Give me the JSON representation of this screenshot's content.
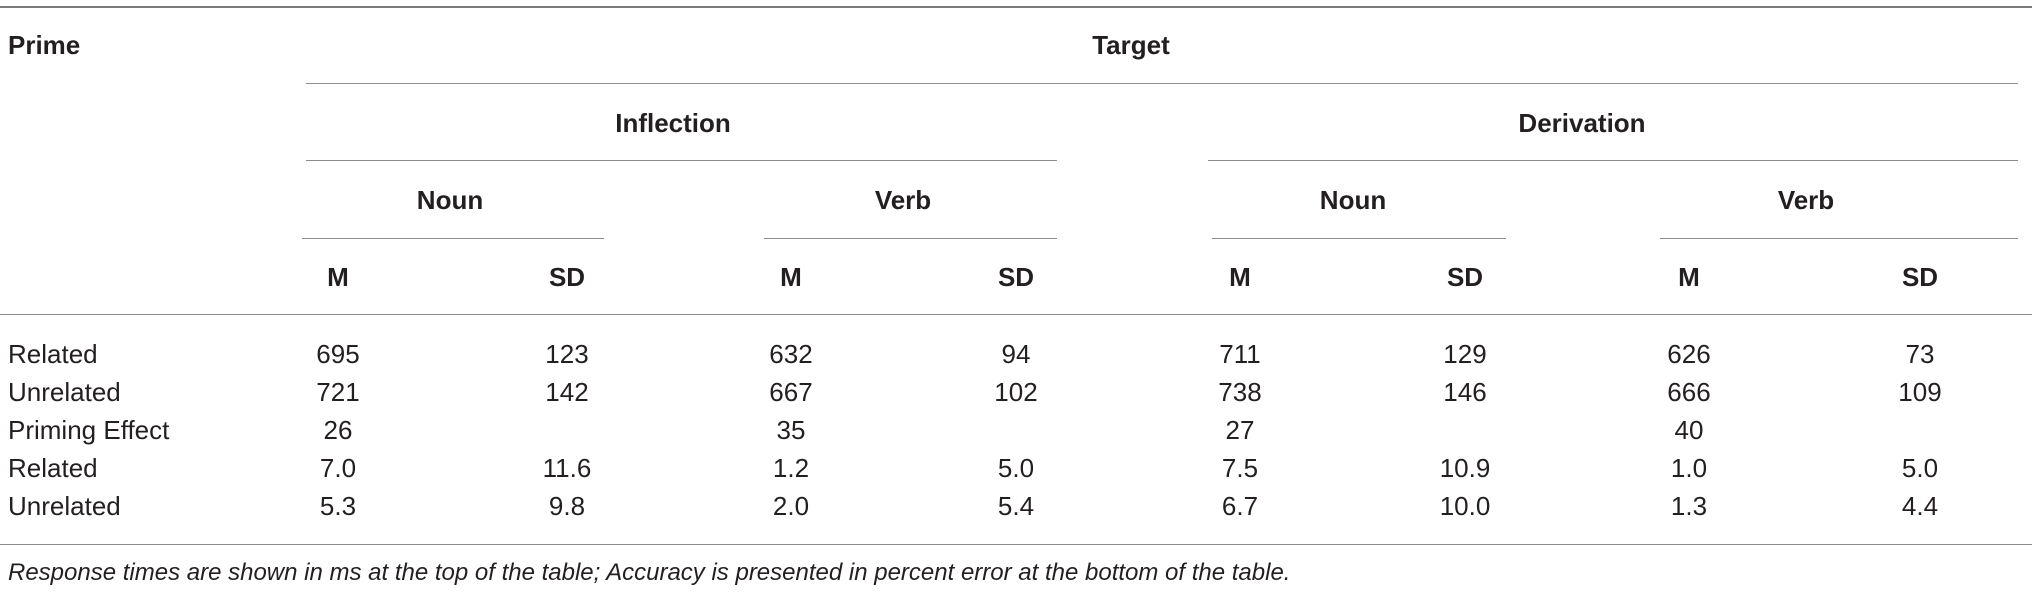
{
  "table": {
    "prime_header": "Prime",
    "target_header": "Target",
    "groups": [
      "Inflection",
      "Derivation"
    ],
    "word_classes": [
      "Noun",
      "Verb",
      "Noun",
      "Verb"
    ],
    "stat_headers": [
      "M",
      "SD",
      "M",
      "SD",
      "M",
      "SD",
      "M",
      "SD"
    ],
    "rows": [
      {
        "label": "Related",
        "values": [
          "695",
          "123",
          "632",
          "94",
          "711",
          "129",
          "626",
          "73"
        ]
      },
      {
        "label": "Unrelated",
        "values": [
          "721",
          "142",
          "667",
          "102",
          "738",
          "146",
          "666",
          "109"
        ]
      },
      {
        "label": "Priming Effect",
        "values": [
          "26",
          "",
          "35",
          "",
          "27",
          "",
          "40",
          ""
        ]
      },
      {
        "label": "Related",
        "values": [
          "7.0",
          "11.6",
          "1.2",
          "5.0",
          "7.5",
          "10.9",
          "1.0",
          "5.0"
        ]
      },
      {
        "label": "Unrelated",
        "values": [
          "5.3",
          "9.8",
          "2.0",
          "5.4",
          "6.7",
          "10.0",
          "1.3",
          "4.4"
        ]
      }
    ]
  },
  "footnote": "Response times are shown in ms at the top of the table; Accuracy is presented in percent error at the bottom of the table."
}
